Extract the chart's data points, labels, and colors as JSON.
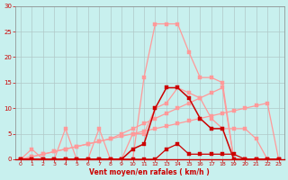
{
  "x": [
    0,
    1,
    2,
    3,
    4,
    5,
    6,
    7,
    8,
    9,
    10,
    11,
    12,
    13,
    14,
    15,
    16,
    17,
    18,
    19,
    20,
    21,
    22,
    23
  ],
  "line_peak_light": [
    0,
    0,
    0,
    0,
    0,
    0,
    0,
    0,
    0,
    0,
    0,
    16,
    26.5,
    26.5,
    26.5,
    21,
    16,
    16,
    15,
    0,
    0,
    0,
    0,
    0
  ],
  "line_spiky_light": [
    0,
    2,
    0,
    0,
    6,
    0,
    0,
    6,
    0,
    0,
    5,
    5,
    10,
    11,
    14,
    13,
    12,
    8,
    6,
    6,
    6,
    4,
    0,
    0
  ],
  "line_diag1": [
    0,
    0.5,
    1,
    1.5,
    2,
    2.5,
    3,
    3.5,
    4,
    4.5,
    5,
    5.5,
    6,
    6.5,
    7,
    7.5,
    8,
    8.5,
    9,
    9.5,
    10,
    10.5,
    11,
    0
  ],
  "line_diag2": [
    0,
    0.5,
    1,
    1.5,
    2,
    2.5,
    3,
    3.5,
    4,
    5,
    6,
    7,
    8,
    9,
    10,
    11,
    12,
    13,
    14,
    0,
    0,
    0,
    0,
    0
  ],
  "line_dark_peak": [
    0,
    0,
    0,
    0,
    0,
    0,
    0,
    0,
    0,
    0,
    2,
    3,
    10,
    14,
    14,
    12,
    8,
    6,
    6,
    0,
    0,
    0,
    0,
    0
  ],
  "line_dark_flat": [
    0,
    0,
    0,
    0,
    0,
    0,
    0,
    0,
    0,
    0,
    0,
    0,
    0,
    2,
    3,
    1,
    1,
    1,
    1,
    1,
    0,
    0,
    0,
    0
  ],
  "bg_color": "#c8f0ee",
  "grid_color": "#b0c8c8",
  "color_light": "#ff9999",
  "color_dark": "#cc0000",
  "xlabel": "Vent moyen/en rafales ( km/h )",
  "ylim": [
    0,
    30
  ],
  "xlim": [
    -0.5,
    23.5
  ],
  "yticks": [
    0,
    5,
    10,
    15,
    20,
    25,
    30
  ],
  "xticks": [
    0,
    1,
    2,
    3,
    4,
    5,
    6,
    7,
    8,
    9,
    10,
    11,
    12,
    13,
    14,
    15,
    16,
    17,
    18,
    19,
    20,
    21,
    22,
    23
  ]
}
